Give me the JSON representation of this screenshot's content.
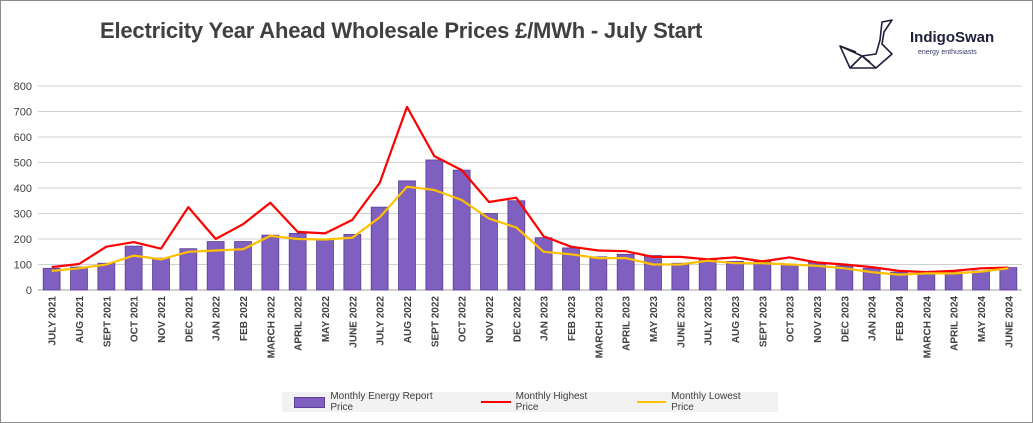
{
  "chart_data": {
    "type": "bar",
    "title": "Electricity Year Ahead Wholesale Prices £/MWh - July Start",
    "xlabel": "",
    "ylabel": "",
    "ylim": [
      0,
      800
    ],
    "yticks": [
      0,
      100,
      200,
      300,
      400,
      500,
      600,
      700,
      800
    ],
    "grid": true,
    "legend_position": "bottom",
    "categories": [
      "JULY 2021",
      "AUG 2021",
      "SEPT 2021",
      "OCT 2021",
      "NOV 2021",
      "DEC 2021",
      "JAN 2022",
      "FEB 2022",
      "MARCH 2022",
      "APRIL 2022",
      "MAY 2022",
      "JUNE 2022",
      "JULY 2022",
      "AUG 2022",
      "SEPT 2022",
      "OCT 2022",
      "NOV 2022",
      "DEC 2022",
      "JAN 2023",
      "FEB 2023",
      "MARCH 2023",
      "APRIL 2023",
      "MAY 2023",
      "JUNE 2023",
      "JULY 2023",
      "AUG 2023",
      "SEPT 2023",
      "OCT 2023",
      "NOV 2023",
      "DEC 2023",
      "JAN 2024",
      "FEB 2024",
      "MARCH 2024",
      "APRIL 2024",
      "MAY 2024",
      "JUNE 2024"
    ],
    "series": [
      {
        "name": "Monthly Energy Report Price",
        "kind": "bar",
        "color": "#7f5fbf",
        "values": [
          85,
          90,
          105,
          172,
          125,
          162,
          190,
          190,
          215,
          222,
          200,
          218,
          325,
          428,
          510,
          470,
          300,
          350,
          205,
          165,
          130,
          140,
          135,
          105,
          120,
          112,
          112,
          100,
          108,
          95,
          85,
          70,
          68,
          70,
          75,
          88
        ]
      },
      {
        "name": "Monthly Highest Price",
        "kind": "line",
        "color": "#ff0000",
        "values": [
          90,
          102,
          170,
          188,
          162,
          325,
          200,
          258,
          342,
          228,
          222,
          275,
          420,
          718,
          525,
          470,
          345,
          362,
          210,
          170,
          155,
          152,
          130,
          130,
          120,
          128,
          112,
          128,
          108,
          100,
          90,
          75,
          70,
          75,
          85,
          88
        ]
      },
      {
        "name": "Monthly Lowest Price",
        "kind": "line",
        "color": "#ffc000",
        "values": [
          75,
          85,
          100,
          135,
          120,
          150,
          155,
          160,
          212,
          200,
          198,
          205,
          285,
          405,
          392,
          353,
          280,
          245,
          150,
          140,
          125,
          125,
          100,
          100,
          115,
          105,
          105,
          100,
          95,
          85,
          70,
          60,
          65,
          65,
          72,
          85
        ]
      }
    ]
  },
  "logo": {
    "name": "IndigoSwan",
    "tagline": "energy enthusiasts"
  },
  "legend": {
    "items": [
      "Monthly Energy Report Price",
      "Monthly Highest Price",
      "Monthly Lowest Price"
    ],
    "colors": [
      "#7f5fbf",
      "#ff0000",
      "#ffc000"
    ]
  }
}
